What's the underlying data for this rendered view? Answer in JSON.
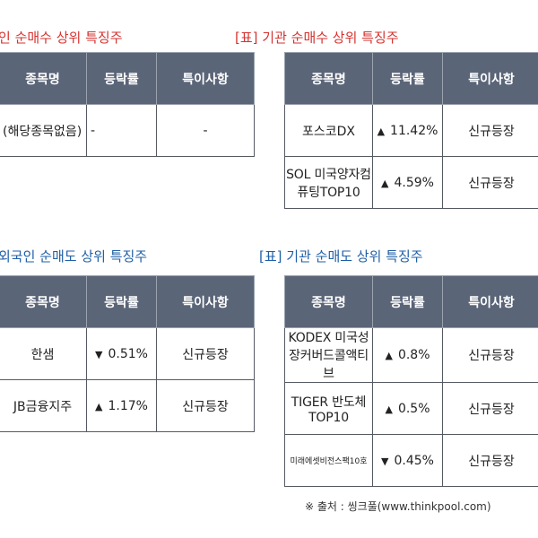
{
  "s1": {
    "title": "인 순매수 상위 특징주",
    "headers": [
      "종목명",
      "등락률",
      "특이사항"
    ],
    "rows": [
      {
        "name": "(해당종목없음)",
        "rate": "-",
        "note": "-"
      }
    ]
  },
  "s2": {
    "title": "[표] 기관 순매수 상위 특징주",
    "headers": [
      "종목명",
      "등락률",
      "특이사항"
    ],
    "rows": [
      {
        "name": "포스코DX",
        "dir": "up",
        "arrow": "▲",
        "rate": "11.42%",
        "note": "신규등장"
      },
      {
        "name": "SOL 미국양자컴퓨팅TOP10",
        "dir": "up",
        "arrow": "▲",
        "rate": "4.59%",
        "note": "신규등장"
      }
    ]
  },
  "s3": {
    "title": "외국인 순매도 상위 특징주",
    "headers": [
      "종목명",
      "등락률",
      "특이사항"
    ],
    "rows": [
      {
        "name": "한샘",
        "dir": "down",
        "arrow": "▼",
        "rate": "0.51%",
        "note": "신규등장"
      },
      {
        "name": "JB금융지주",
        "dir": "up",
        "arrow": "▲",
        "rate": "1.17%",
        "note": "신규등장"
      }
    ]
  },
  "s4": {
    "title": "[표] 기관 순매도 상위 특징주",
    "headers": [
      "종목명",
      "등락률",
      "특이사항"
    ],
    "rows": [
      {
        "name": "KODEX 미국성장커버드콜액티브",
        "dir": "up",
        "arrow": "▲",
        "rate": "0.8%",
        "note": "신규등장"
      },
      {
        "name": "TIGER 반도체TOP10",
        "dir": "up",
        "arrow": "▲",
        "rate": "0.5%",
        "note": "신규등장"
      },
      {
        "name": "미래에셋비전스팩10호",
        "dir": "down",
        "arrow": "▼",
        "rate": "0.45%",
        "note": "신규등장"
      }
    ]
  },
  "source": "※ 출처 : 씽크풀(www.thinkpool.com)",
  "colors": {
    "up": "#d6322f",
    "down": "#1f6fc4",
    "header_bg": "#5b6578",
    "title_red": "#d6322f",
    "title_blue": "#1f5fa6"
  }
}
